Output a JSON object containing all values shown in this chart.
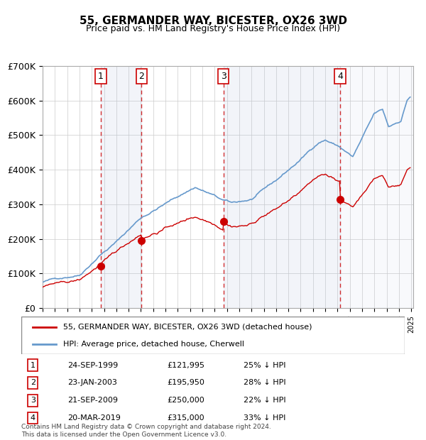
{
  "title": "55, GERMANDER WAY, BICESTER, OX26 3WD",
  "subtitle": "Price paid vs. HM Land Registry's House Price Index (HPI)",
  "footnote": "Contains HM Land Registry data © Crown copyright and database right 2024.\nThis data is licensed under the Open Government Licence v3.0.",
  "legend_red": "55, GERMANDER WAY, BICESTER, OX26 3WD (detached house)",
  "legend_blue": "HPI: Average price, detached house, Cherwell",
  "purchases": [
    {
      "num": 1,
      "date": "1999-09-24",
      "price": 121995,
      "pct": "25%",
      "label": "24-SEP-1999",
      "price_label": "£121,995"
    },
    {
      "num": 2,
      "date": "2003-01-23",
      "price": 195950,
      "pct": "28%",
      "label": "23-JAN-2003",
      "price_label": "£195,950"
    },
    {
      "num": 3,
      "date": "2009-09-21",
      "price": 250000,
      "pct": "22%",
      "label": "21-SEP-2009",
      "price_label": "£250,000"
    },
    {
      "num": 4,
      "date": "2019-03-20",
      "price": 315000,
      "pct": "33%",
      "label": "20-MAR-2019",
      "price_label": "£315,000"
    }
  ],
  "ylim": [
    0,
    700000
  ],
  "yticks": [
    0,
    100000,
    200000,
    300000,
    400000,
    500000,
    600000,
    700000
  ],
  "ytick_labels": [
    "£0",
    "£100K",
    "£200K",
    "£300K",
    "£400K",
    "£500K",
    "£600K",
    "£700K"
  ],
  "bg_color": "#f0f4ff",
  "grid_color": "#cccccc",
  "red_color": "#cc0000",
  "blue_color": "#6699cc",
  "dashed_color": "#cc0000"
}
